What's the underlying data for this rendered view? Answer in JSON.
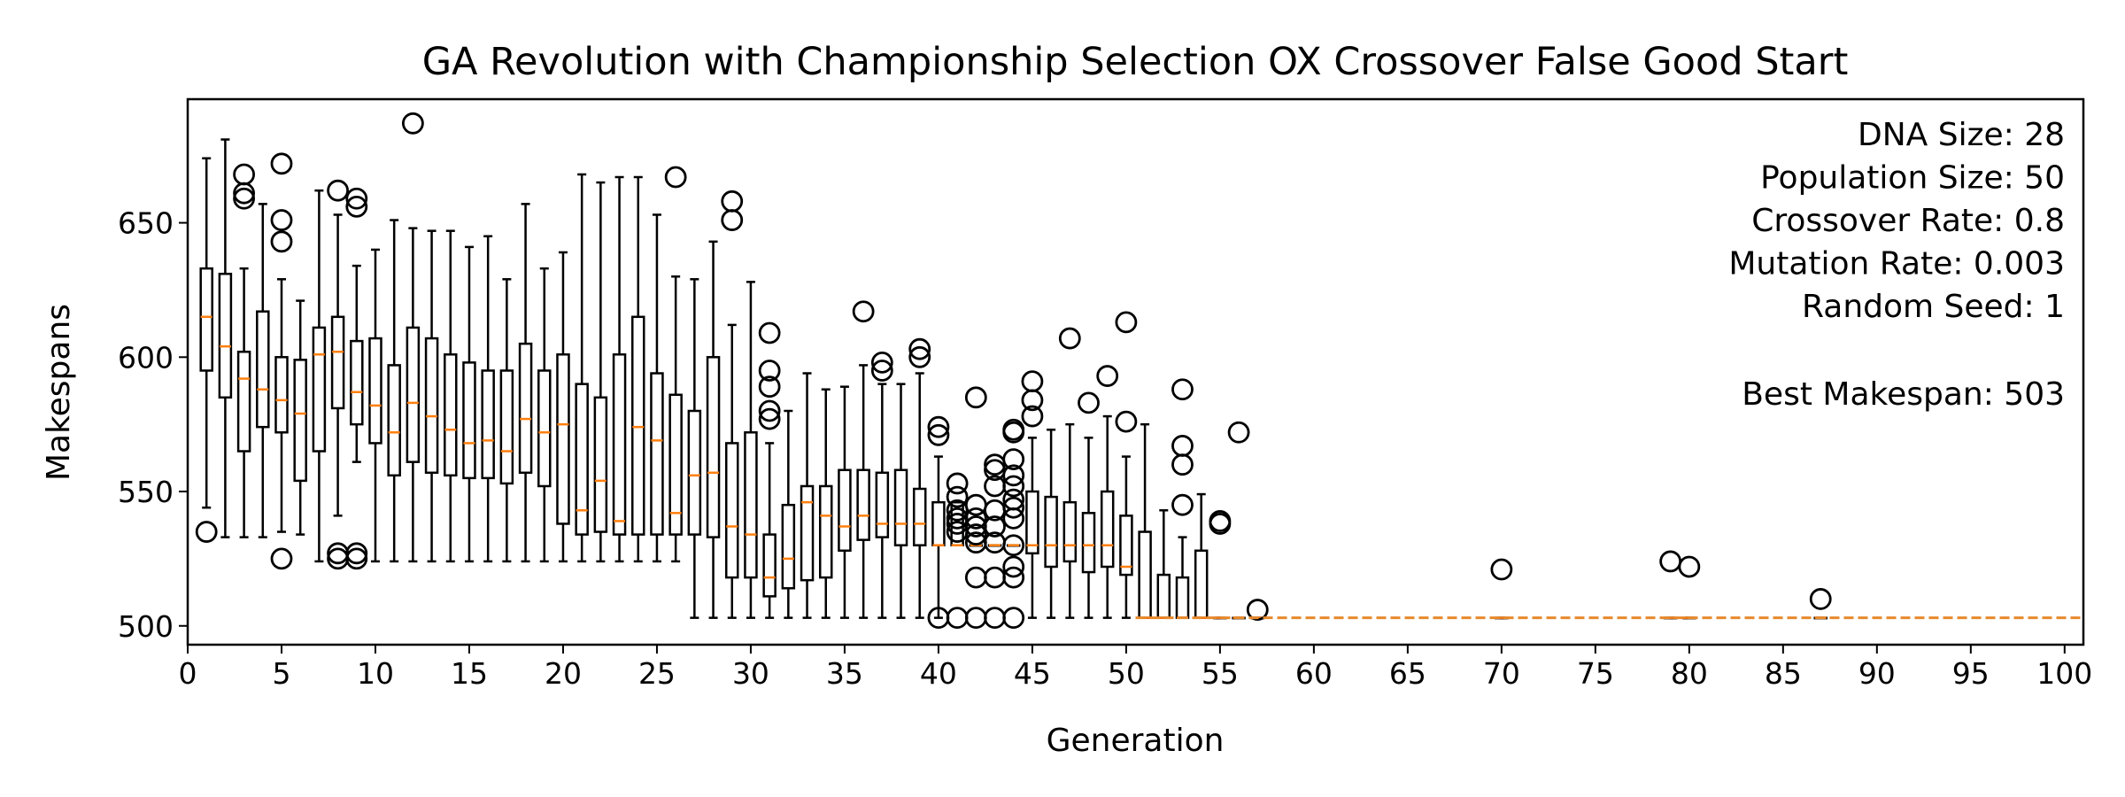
{
  "chart_data": {
    "type": "box",
    "title": "GA Revolution with Championship Selection OX Crossover False Good Start",
    "xlabel": "Generation",
    "ylabel": "Makespans",
    "xlim": [
      0,
      101
    ],
    "ylim": [
      493,
      696
    ],
    "xticks": [
      0,
      5,
      10,
      15,
      20,
      25,
      30,
      35,
      40,
      45,
      50,
      55,
      60,
      65,
      70,
      75,
      80,
      85,
      90,
      95,
      100
    ],
    "yticks": [
      500,
      550,
      600,
      650
    ],
    "info": {
      "lines": [
        "DNA Size: 28",
        "Population Size: 50",
        "Crossover Rate: 0.8",
        "Mutation Rate: 0.003",
        "Random Seed: 1"
      ],
      "best": "Best Makespan: 503"
    },
    "colors": {
      "box": "#000000",
      "median": "#ff7f0e",
      "best_line": "#e8892c"
    },
    "best_line": {
      "value": 503,
      "x_start": 50.5,
      "x_end": 101,
      "style": "dashed"
    },
    "boxes": [
      {
        "x": 1,
        "wlo": 544,
        "q1": 595,
        "med": 615,
        "q3": 633,
        "whi": 674,
        "out": [
          535
        ]
      },
      {
        "x": 2,
        "wlo": 533,
        "q1": 585,
        "med": 604,
        "q3": 631,
        "whi": 681,
        "out": []
      },
      {
        "x": 3,
        "wlo": 533,
        "q1": 565,
        "med": 592,
        "q3": 602,
        "whi": 633,
        "out": [
          668,
          661,
          659
        ]
      },
      {
        "x": 4,
        "wlo": 533,
        "q1": 574,
        "med": 588,
        "q3": 617,
        "whi": 657,
        "out": []
      },
      {
        "x": 5,
        "wlo": 535,
        "q1": 572,
        "med": 584,
        "q3": 600,
        "whi": 629,
        "out": [
          672,
          651,
          643,
          525
        ]
      },
      {
        "x": 6,
        "wlo": 534,
        "q1": 554,
        "med": 579,
        "q3": 599,
        "whi": 621,
        "out": []
      },
      {
        "x": 7,
        "wlo": 524,
        "q1": 565,
        "med": 601,
        "q3": 611,
        "whi": 662,
        "out": []
      },
      {
        "x": 8,
        "wlo": 541,
        "q1": 581,
        "med": 602,
        "q3": 615,
        "whi": 653,
        "out": [
          662,
          527,
          525
        ]
      },
      {
        "x": 9,
        "wlo": 561,
        "q1": 575,
        "med": 587,
        "q3": 606,
        "whi": 634,
        "out": [
          659,
          656,
          527,
          525
        ]
      },
      {
        "x": 10,
        "wlo": 524,
        "q1": 568,
        "med": 582,
        "q3": 607,
        "whi": 640,
        "out": []
      },
      {
        "x": 11,
        "wlo": 524,
        "q1": 556,
        "med": 572,
        "q3": 597,
        "whi": 651,
        "out": []
      },
      {
        "x": 12,
        "wlo": 524,
        "q1": 561,
        "med": 583,
        "q3": 611,
        "whi": 648,
        "out": [
          687
        ]
      },
      {
        "x": 13,
        "wlo": 524,
        "q1": 557,
        "med": 578,
        "q3": 607,
        "whi": 647,
        "out": []
      },
      {
        "x": 14,
        "wlo": 524,
        "q1": 556,
        "med": 573,
        "q3": 601,
        "whi": 647,
        "out": []
      },
      {
        "x": 15,
        "wlo": 524,
        "q1": 555,
        "med": 568,
        "q3": 598,
        "whi": 641,
        "out": []
      },
      {
        "x": 16,
        "wlo": 524,
        "q1": 555,
        "med": 569,
        "q3": 595,
        "whi": 645,
        "out": []
      },
      {
        "x": 17,
        "wlo": 524,
        "q1": 553,
        "med": 565,
        "q3": 595,
        "whi": 629,
        "out": []
      },
      {
        "x": 18,
        "wlo": 524,
        "q1": 557,
        "med": 577,
        "q3": 605,
        "whi": 657,
        "out": []
      },
      {
        "x": 19,
        "wlo": 524,
        "q1": 552,
        "med": 572,
        "q3": 595,
        "whi": 633,
        "out": []
      },
      {
        "x": 20,
        "wlo": 524,
        "q1": 538,
        "med": 575,
        "q3": 601,
        "whi": 639,
        "out": []
      },
      {
        "x": 21,
        "wlo": 524,
        "q1": 534,
        "med": 543,
        "q3": 590,
        "whi": 668,
        "out": []
      },
      {
        "x": 22,
        "wlo": 524,
        "q1": 535,
        "med": 554,
        "q3": 585,
        "whi": 665,
        "out": []
      },
      {
        "x": 23,
        "wlo": 524,
        "q1": 534,
        "med": 539,
        "q3": 601,
        "whi": 667,
        "out": []
      },
      {
        "x": 24,
        "wlo": 524,
        "q1": 534,
        "med": 574,
        "q3": 615,
        "whi": 667,
        "out": []
      },
      {
        "x": 25,
        "wlo": 524,
        "q1": 534,
        "med": 569,
        "q3": 594,
        "whi": 653,
        "out": []
      },
      {
        "x": 26,
        "wlo": 524,
        "q1": 534,
        "med": 542,
        "q3": 586,
        "whi": 630,
        "out": [
          667
        ]
      },
      {
        "x": 27,
        "wlo": 503,
        "q1": 534,
        "med": 556,
        "q3": 580,
        "whi": 629,
        "out": []
      },
      {
        "x": 28,
        "wlo": 503,
        "q1": 533,
        "med": 557,
        "q3": 600,
        "whi": 643,
        "out": []
      },
      {
        "x": 29,
        "wlo": 503,
        "q1": 518,
        "med": 537,
        "q3": 568,
        "whi": 612,
        "out": [
          658,
          651
        ]
      },
      {
        "x": 30,
        "wlo": 503,
        "q1": 518,
        "med": 534,
        "q3": 572,
        "whi": 628,
        "out": []
      },
      {
        "x": 31,
        "wlo": 503,
        "q1": 511,
        "med": 518,
        "q3": 534,
        "whi": 568,
        "out": [
          609,
          595,
          589,
          580,
          577
        ]
      },
      {
        "x": 32,
        "wlo": 503,
        "q1": 514,
        "med": 525,
        "q3": 545,
        "whi": 580,
        "out": []
      },
      {
        "x": 33,
        "wlo": 503,
        "q1": 517,
        "med": 546,
        "q3": 552,
        "whi": 594,
        "out": []
      },
      {
        "x": 34,
        "wlo": 503,
        "q1": 518,
        "med": 541,
        "q3": 552,
        "whi": 588,
        "out": []
      },
      {
        "x": 35,
        "wlo": 503,
        "q1": 528,
        "med": 537,
        "q3": 558,
        "whi": 589,
        "out": []
      },
      {
        "x": 36,
        "wlo": 503,
        "q1": 532,
        "med": 541,
        "q3": 558,
        "whi": 597,
        "out": [
          617
        ]
      },
      {
        "x": 37,
        "wlo": 503,
        "q1": 533,
        "med": 538,
        "q3": 557,
        "whi": 590,
        "out": [
          598,
          595
        ]
      },
      {
        "x": 38,
        "wlo": 503,
        "q1": 530,
        "med": 538,
        "q3": 558,
        "whi": 590,
        "out": []
      },
      {
        "x": 39,
        "wlo": 503,
        "q1": 530,
        "med": 538,
        "q3": 551,
        "whi": 594,
        "out": [
          603,
          600
        ]
      },
      {
        "x": 40,
        "wlo": 503,
        "q1": 530,
        "med": 530,
        "q3": 546,
        "whi": 563,
        "out": [
          574,
          571,
          503
        ]
      },
      {
        "x": 41,
        "wlo": 530,
        "q1": 530,
        "med": 530,
        "q3": 546,
        "whi": 546,
        "out": [
          553,
          548,
          543,
          540,
          538,
          535,
          503
        ]
      },
      {
        "x": 42,
        "wlo": 530,
        "q1": 530,
        "med": 530,
        "q3": 530,
        "whi": 530,
        "out": [
          585,
          545,
          540,
          537,
          534,
          531,
          518,
          503
        ]
      },
      {
        "x": 43,
        "wlo": 530,
        "q1": 530,
        "med": 530,
        "q3": 530,
        "whi": 530,
        "out": [
          560,
          558,
          552,
          543,
          537,
          531,
          518,
          503
        ]
      },
      {
        "x": 44,
        "wlo": 530,
        "q1": 530,
        "med": 530,
        "q3": 530,
        "whi": 530,
        "out": [
          573,
          572,
          562,
          556,
          552,
          547,
          544,
          540,
          530,
          522,
          518,
          503
        ]
      },
      {
        "x": 45,
        "wlo": 503,
        "q1": 527,
        "med": 530,
        "q3": 550,
        "whi": 570,
        "out": [
          591,
          584,
          578
        ]
      },
      {
        "x": 46,
        "wlo": 503,
        "q1": 522,
        "med": 530,
        "q3": 548,
        "whi": 573,
        "out": []
      },
      {
        "x": 47,
        "wlo": 503,
        "q1": 524,
        "med": 530,
        "q3": 546,
        "whi": 575,
        "out": [
          607
        ]
      },
      {
        "x": 48,
        "wlo": 503,
        "q1": 520,
        "med": 530,
        "q3": 542,
        "whi": 570,
        "out": [
          583
        ]
      },
      {
        "x": 49,
        "wlo": 503,
        "q1": 522,
        "med": 530,
        "q3": 550,
        "whi": 578,
        "out": [
          593
        ]
      },
      {
        "x": 50,
        "wlo": 503,
        "q1": 519,
        "med": 522,
        "q3": 541,
        "whi": 563,
        "out": [
          613,
          576
        ]
      },
      {
        "x": 51,
        "wlo": 503,
        "q1": 503,
        "med": 503,
        "q3": 535,
        "whi": 575,
        "out": []
      },
      {
        "x": 52,
        "wlo": 503,
        "q1": 503,
        "med": 503,
        "q3": 519,
        "whi": 543,
        "out": []
      },
      {
        "x": 53,
        "wlo": 503,
        "q1": 503,
        "med": 503,
        "q3": 518,
        "whi": 533,
        "out": [
          588,
          567,
          560,
          545
        ]
      },
      {
        "x": 54,
        "wlo": 503,
        "q1": 503,
        "med": 503,
        "q3": 528,
        "whi": 549,
        "out": []
      },
      {
        "x": 55,
        "wlo": 503,
        "q1": 503,
        "med": 503,
        "q3": 503,
        "whi": 503,
        "out": [
          539,
          538
        ]
      },
      {
        "x": 56,
        "wlo": 503,
        "q1": 503,
        "med": 503,
        "q3": 503,
        "whi": 503,
        "out": [
          572
        ]
      },
      {
        "x": 57,
        "wlo": 503,
        "q1": 503,
        "med": 503,
        "q3": 503,
        "whi": 503,
        "out": [
          506
        ]
      },
      {
        "x": 70,
        "wlo": 503,
        "q1": 503,
        "med": 503,
        "q3": 503,
        "whi": 503,
        "out": [
          521
        ]
      },
      {
        "x": 79,
        "wlo": 503,
        "q1": 503,
        "med": 503,
        "q3": 503,
        "whi": 503,
        "out": [
          524
        ]
      },
      {
        "x": 80,
        "wlo": 503,
        "q1": 503,
        "med": 503,
        "q3": 503,
        "whi": 503,
        "out": [
          522
        ]
      },
      {
        "x": 87,
        "wlo": 503,
        "q1": 503,
        "med": 503,
        "q3": 503,
        "whi": 503,
        "out": [
          510
        ]
      }
    ]
  }
}
